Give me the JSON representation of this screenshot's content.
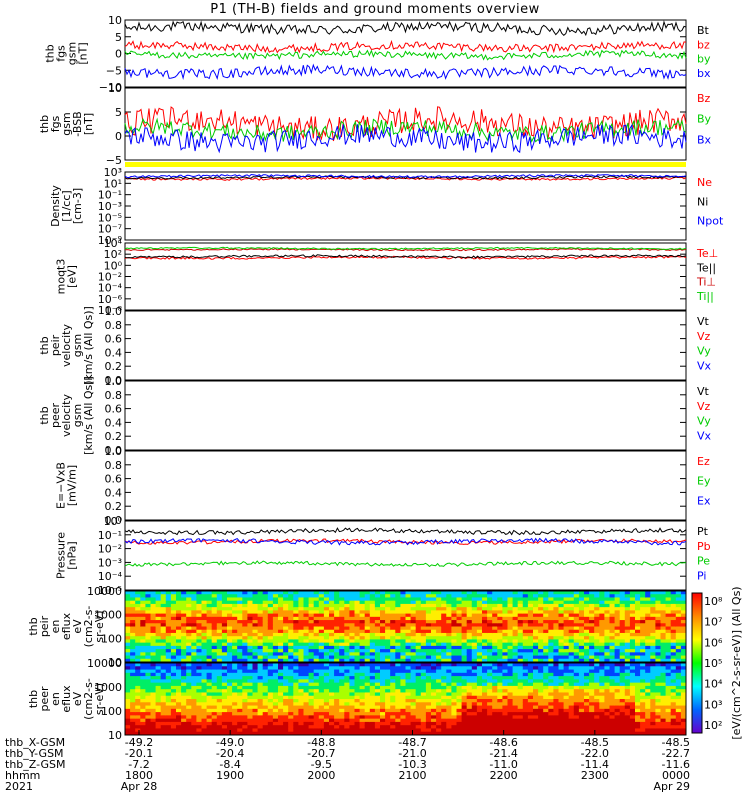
{
  "title": "P1 (TH-B) fields and ground moments overview",
  "chart_data": [
    {
      "type": "line",
      "ylabel": [
        "thb",
        "fgs",
        "gsm",
        "[nT]"
      ],
      "yticks": [
        "10",
        "5",
        "0",
        "−5",
        "−10"
      ],
      "ylim": [
        -10,
        10
      ],
      "series": [
        {
          "name": "Bt",
          "color": "#000000",
          "base": 7.5,
          "amp": 1.5
        },
        {
          "name": "bz",
          "color": "#ff0000",
          "base": 2.0,
          "amp": 1.2
        },
        {
          "name": "by",
          "color": "#00cc00",
          "base": -0.5,
          "amp": 1.0
        },
        {
          "name": "bx",
          "color": "#0000ff",
          "base": -5.5,
          "amp": 1.5
        }
      ]
    },
    {
      "type": "line",
      "ylabel": [
        "thb",
        "fgs",
        "gsm",
        "-BSB",
        "[nT]"
      ],
      "yticks": [
        "10",
        "5",
        "0",
        "−5"
      ],
      "ylim": [
        -7,
        10
      ],
      "series": [
        {
          "name": "Bz",
          "color": "#ff0000",
          "base": 1.5,
          "amp": 3.0
        },
        {
          "name": "By",
          "color": "#00cc00",
          "base": 0.0,
          "amp": 2.0
        },
        {
          "name": "Bx",
          "color": "#0000ff",
          "base": -2.0,
          "amp": 2.5
        }
      ]
    },
    {
      "type": "line",
      "ylabel": [
        "Density",
        "[1/cc]",
        "[cm-3]"
      ],
      "yticks": [
        "10³",
        "10¹",
        "10⁻¹",
        "10⁻³",
        "10⁻⁵",
        "10⁻⁷",
        "10⁻⁹"
      ],
      "log": true,
      "series": [
        {
          "name": "Ne",
          "color": "#ff0000",
          "base": 0.1,
          "amp": 0.03
        },
        {
          "name": "Ni",
          "color": "#000000",
          "base": 0.08,
          "amp": 0.03
        },
        {
          "name": "Npot",
          "color": "#0000ff",
          "base": 0.06,
          "amp": 0.03
        }
      ]
    },
    {
      "type": "line",
      "ylabel": [
        "moqt3",
        "[eV]"
      ],
      "yticks": [
        "10⁴",
        "10²",
        "10⁰",
        "10⁻²",
        "10⁻⁴",
        "10⁻⁶",
        "10⁻⁸"
      ],
      "log": true,
      "series": [
        {
          "name": "Te⊥",
          "color": "#ff0000",
          "base": 0.22,
          "amp": 0.03
        },
        {
          "name": "Te||",
          "color": "#000000",
          "base": 0.2,
          "amp": 0.03
        },
        {
          "name": "Ti⊥",
          "color": "#cc0000",
          "base": 0.1,
          "amp": 0.02
        },
        {
          "name": "Ti||",
          "color": "#00cc00",
          "base": 0.08,
          "amp": 0.02
        }
      ]
    },
    {
      "type": "line",
      "ylabel": [
        "thb",
        "peir",
        "velocity",
        "gsm",
        "[km/s (All Qs)]"
      ],
      "yticks": [
        "1.0",
        "0.8",
        "0.6",
        "0.4",
        "0.2",
        "0.0"
      ],
      "ylim": [
        0,
        1
      ],
      "series": [
        {
          "name": "Vt",
          "color": "#000000"
        },
        {
          "name": "Vz",
          "color": "#ff0000"
        },
        {
          "name": "Vy",
          "color": "#00cc00"
        },
        {
          "name": "Vx",
          "color": "#0000ff"
        }
      ]
    },
    {
      "type": "line",
      "ylabel": [
        "thb",
        "peer",
        "velocity",
        "gsm",
        "[km/s (All Qs)]"
      ],
      "yticks": [
        "1.0",
        "0.8",
        "0.6",
        "0.4",
        "0.2",
        "0.0"
      ],
      "ylim": [
        0,
        1
      ],
      "series": [
        {
          "name": "Vt",
          "color": "#000000"
        },
        {
          "name": "Vz",
          "color": "#ff0000"
        },
        {
          "name": "Vy",
          "color": "#00cc00"
        },
        {
          "name": "Vx",
          "color": "#0000ff"
        }
      ]
    },
    {
      "type": "line",
      "ylabel": [
        "E=−VxB",
        "[mV/m]"
      ],
      "yticks": [
        "1.0",
        "0.8",
        "0.6",
        "0.4",
        "0.2",
        "0.0"
      ],
      "ylim": [
        0,
        1
      ],
      "series": [
        {
          "name": "Ez",
          "color": "#ff0000"
        },
        {
          "name": "Ey",
          "color": "#00cc00"
        },
        {
          "name": "Ex",
          "color": "#0000ff"
        }
      ]
    },
    {
      "type": "line",
      "ylabel": [
        "Pressure",
        "[nPa]"
      ],
      "yticks": [
        "10⁰",
        "10⁻¹",
        "10⁻²",
        "10⁻³",
        "10⁻⁴",
        "10⁻⁵"
      ],
      "log": true,
      "series": [
        {
          "name": "Pt",
          "color": "#000000",
          "base": 0.15,
          "amp": 0.06
        },
        {
          "name": "Pb",
          "color": "#ff0000",
          "base": 0.3,
          "amp": 0.05
        },
        {
          "name": "Pe",
          "color": "#00cc00",
          "base": 0.62,
          "amp": 0.05
        },
        {
          "name": "Pi",
          "color": "#0000ff",
          "base": 0.3,
          "amp": 0.06
        }
      ]
    },
    {
      "type": "heatmap",
      "ylabel": [
        "thb",
        "peir",
        "en",
        "eflux",
        "eV",
        "(cm2-s-",
        "sr-eV)"
      ],
      "yticks": [
        "10000",
        "1000",
        "100",
        "10"
      ],
      "log": true
    },
    {
      "type": "heatmap",
      "ylabel": [
        "thb",
        "peer",
        "en",
        "eflux",
        "eV",
        "(cm2-s-",
        "sr-eV)"
      ],
      "yticks": [
        "10000",
        "1000",
        "100",
        "10"
      ],
      "log": true
    }
  ],
  "colorbar": {
    "label": "[eV/(cm^2-s-sr-eV)] (All Qs)",
    "ticks": [
      "10⁸",
      "10⁷",
      "10⁶",
      "10⁵",
      "10⁴",
      "10³",
      "10²"
    ],
    "colors": [
      "#ff0000",
      "#ff8800",
      "#ffff00",
      "#00ff00",
      "#00ffff",
      "#0066ff",
      "#6600cc"
    ]
  },
  "xaxis": {
    "rows": [
      {
        "label": "thb_X-GSM",
        "values": [
          "-49.2",
          "-49.0",
          "-48.8",
          "-48.7",
          "-48.6",
          "-48.5",
          "-48.5"
        ]
      },
      {
        "label": "thb_Y-GSM",
        "values": [
          "-20.1",
          "-20.4",
          "-20.7",
          "-21.0",
          "-21.4",
          "-22.0",
          "-22.7"
        ]
      },
      {
        "label": "thb_Z-GSM",
        "values": [
          "-7.2",
          "-8.4",
          "-9.5",
          "-10.3",
          "-11.0",
          "-11.4",
          "-11.6"
        ]
      },
      {
        "label": "hhmm",
        "values": [
          "1800",
          "1900",
          "2000",
          "2100",
          "2200",
          "2300",
          "0000"
        ]
      },
      {
        "label": "2021",
        "values": [
          "Apr 28",
          "",
          "",
          "",
          "",
          "",
          "Apr 29"
        ]
      }
    ]
  },
  "yellow_bar_color": "#ffff00"
}
